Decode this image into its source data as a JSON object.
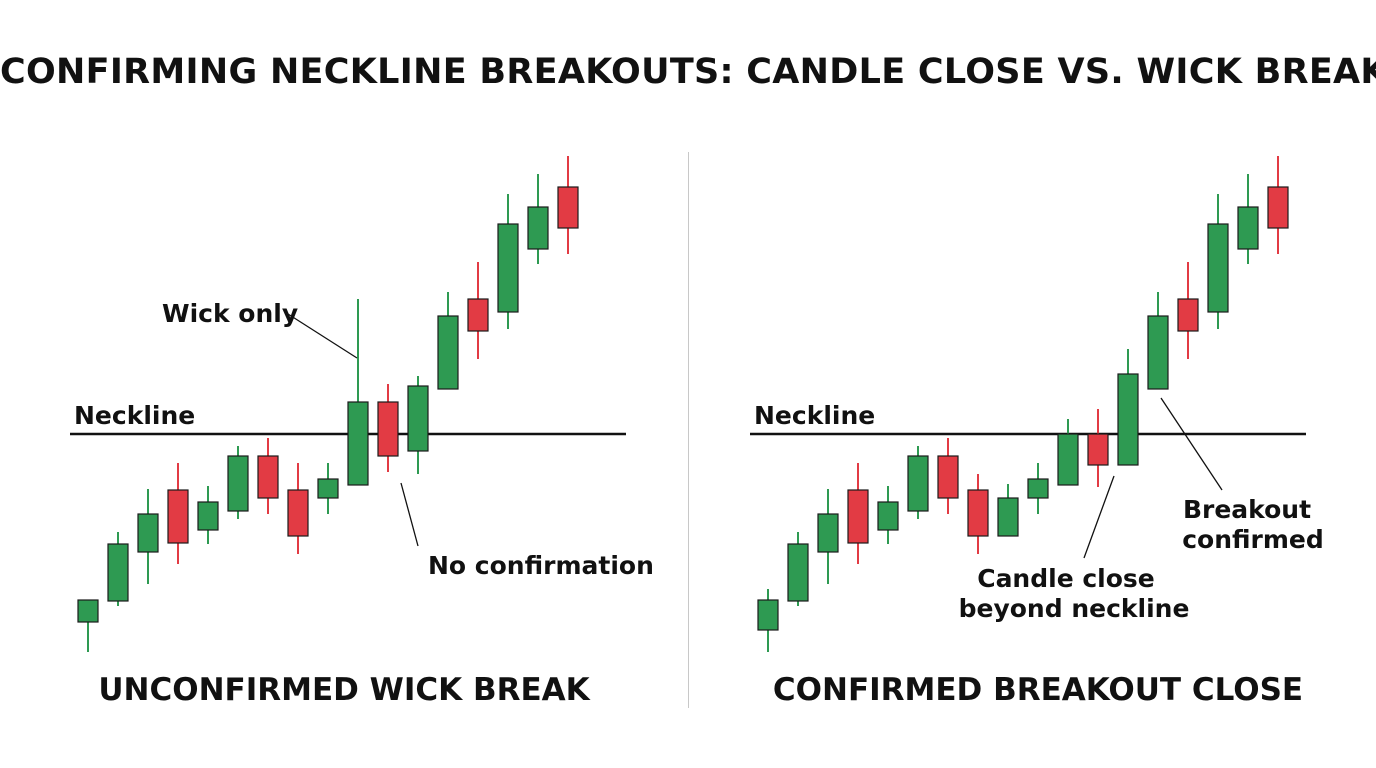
{
  "title": "CONFIRMING NECKLINE BREAKOUTS: CANDLE CLOSE VS. WICK BREAK",
  "colors": {
    "bull": "#2e9a52",
    "bear": "#e23b44",
    "outline": "#1a1a1a",
    "neckline": "#111111"
  },
  "chart_data": [
    {
      "type": "candlestick",
      "title": "UNCONFIRMED WICK BREAK",
      "neckline_label": "Neckline",
      "neckline": 0,
      "candles": [
        {
          "o": -188,
          "h": -168,
          "l": -218,
          "c": -166
        },
        {
          "o": -167,
          "h": -98,
          "l": -172,
          "c": -110
        },
        {
          "o": -118,
          "h": -55,
          "l": -150,
          "c": -80
        },
        {
          "o": -56,
          "h": -29,
          "l": -130,
          "c": -109
        },
        {
          "o": -96,
          "h": -52,
          "l": -110,
          "c": -68
        },
        {
          "o": -77,
          "h": -12,
          "l": -85,
          "c": -22
        },
        {
          "o": -22,
          "h": -4,
          "l": -80,
          "c": -64
        },
        {
          "o": -56,
          "h": -29,
          "l": -120,
          "c": -102
        },
        {
          "o": -64,
          "h": -29,
          "l": -80,
          "c": -45
        },
        {
          "o": -51,
          "h": 135,
          "l": -51,
          "c": 32
        },
        {
          "o": 32,
          "h": 50,
          "l": -38,
          "c": -22
        },
        {
          "o": -17,
          "h": 58,
          "l": -40,
          "c": 48
        },
        {
          "o": 45,
          "h": 142,
          "l": 45,
          "c": 118
        },
        {
          "o": 135,
          "h": 172,
          "l": 75,
          "c": 103
        },
        {
          "o": 122,
          "h": 240,
          "l": 105,
          "c": 210
        },
        {
          "o": 185,
          "h": 260,
          "l": 170,
          "c": 227
        },
        {
          "o": 247,
          "h": 278,
          "l": 180,
          "c": 206
        }
      ],
      "annotations": [
        {
          "text": [
            "Wick only"
          ],
          "candle": 9,
          "target": "high"
        },
        {
          "text": [
            "No confirmation"
          ],
          "candle": 10,
          "target": "low"
        }
      ]
    },
    {
      "type": "candlestick",
      "title": "CONFIRMED BREAKOUT CLOSE",
      "neckline_label": "Neckline",
      "neckline": 0,
      "candles": [
        {
          "o": -196,
          "h": -155,
          "l": -218,
          "c": -166
        },
        {
          "o": -167,
          "h": -98,
          "l": -172,
          "c": -110
        },
        {
          "o": -118,
          "h": -55,
          "l": -150,
          "c": -80
        },
        {
          "o": -56,
          "h": -29,
          "l": -130,
          "c": -109
        },
        {
          "o": -96,
          "h": -52,
          "l": -110,
          "c": -68
        },
        {
          "o": -77,
          "h": -12,
          "l": -85,
          "c": -22
        },
        {
          "o": -22,
          "h": -4,
          "l": -80,
          "c": -64
        },
        {
          "o": -56,
          "h": -40,
          "l": -120,
          "c": -102
        },
        {
          "o": -102,
          "h": -50,
          "l": -102,
          "c": -64
        },
        {
          "o": -64,
          "h": -29,
          "l": -80,
          "c": -45
        },
        {
          "o": -51,
          "h": 15,
          "l": -51,
          "c": 0
        },
        {
          "o": 0,
          "h": 25,
          "l": -53,
          "c": -31
        },
        {
          "o": -31,
          "h": 85,
          "l": -31,
          "c": 60
        },
        {
          "o": 45,
          "h": 142,
          "l": 45,
          "c": 118
        },
        {
          "o": 135,
          "h": 172,
          "l": 75,
          "c": 103
        },
        {
          "o": 122,
          "h": 240,
          "l": 105,
          "c": 210
        },
        {
          "o": 185,
          "h": 260,
          "l": 170,
          "c": 227
        },
        {
          "o": 247,
          "h": 278,
          "l": 180,
          "c": 206
        }
      ],
      "annotations": [
        {
          "text": [
            "Candle close",
            "beyond neckline"
          ],
          "candle": 12,
          "target": "close-low"
        },
        {
          "text": [
            "Breakout",
            "confirmed"
          ],
          "candle": 13,
          "target": "close-low"
        }
      ]
    }
  ]
}
